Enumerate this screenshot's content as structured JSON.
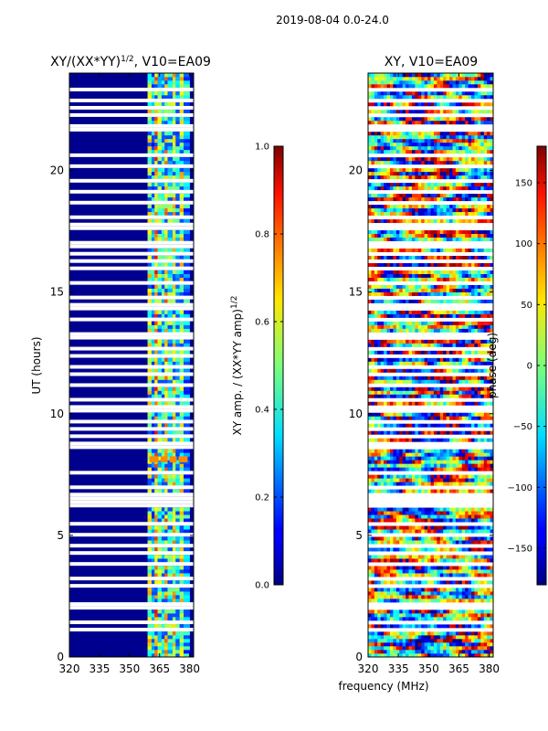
{
  "figure_title": "2019-08-04 0.0-24.0",
  "chart_data": [
    {
      "type": "heatmap",
      "title": "XY/(XX*YY)",
      "title_exponent": "1/2",
      "title_suffix": ", V10=EA09",
      "xlabel": "",
      "ylabel": "UT (hours)",
      "x_ticks": [
        "320",
        "335",
        "350",
        "365",
        "380"
      ],
      "x_tick_values": [
        320,
        335,
        350,
        365,
        380
      ],
      "xlim": [
        320,
        382
      ],
      "y_ticks": [
        "0",
        "5",
        "10",
        "15",
        "20"
      ],
      "y_tick_values": [
        0,
        5,
        10,
        15,
        20
      ],
      "ylim": [
        0,
        24
      ],
      "colormap": "jet",
      "active_band_mhz": [
        358,
        380
      ],
      "colorbar": {
        "label": "XY amp. / (XX*YY amp)",
        "label_exponent": "1/2",
        "range": [
          0.0,
          1.0
        ],
        "ticks": [
          "0.0",
          "0.2",
          "0.4",
          "0.6",
          "0.8",
          "1.0"
        ],
        "tick_values": [
          0.0,
          0.2,
          0.4,
          0.6,
          0.8,
          1.0
        ]
      }
    },
    {
      "type": "heatmap",
      "title": "XY, V10=EA09",
      "xlabel": "frequency (MHz)",
      "ylabel": "",
      "x_ticks": [
        "320",
        "335",
        "350",
        "365",
        "380"
      ],
      "x_tick_values": [
        320,
        335,
        350,
        365,
        380
      ],
      "xlim": [
        320,
        382
      ],
      "y_ticks": [
        "0",
        "5",
        "10",
        "15",
        "20"
      ],
      "y_tick_values": [
        0,
        5,
        10,
        15,
        20
      ],
      "ylim": [
        0,
        24
      ],
      "colormap": "jet",
      "colorbar": {
        "label": "phase (deg)",
        "range": [
          -180,
          180
        ],
        "ticks": [
          "−150",
          "−100",
          "−50",
          "0",
          "50",
          "100",
          "150"
        ],
        "tick_values": [
          -150,
          -100,
          -50,
          0,
          50,
          100,
          150
        ]
      }
    }
  ],
  "gap_hours": [
    1.1,
    1.4,
    2.0,
    2.15,
    2.9,
    3.2,
    3.8,
    4.3,
    4.6,
    5.0,
    5.5,
    6.3,
    6.6,
    7.0,
    7.6,
    8.6,
    8.8,
    9.0,
    9.4,
    9.7,
    10.2,
    10.6,
    11.2,
    11.6,
    11.9,
    12.3,
    12.7,
    13.1,
    13.3,
    13.8,
    14.3,
    14.5,
    14.8,
    15.4,
    15.9,
    16.3,
    16.6,
    16.8,
    17.0,
    17.6,
    17.8,
    18.1,
    18.7,
    19.1,
    19.5,
    20.1,
    20.6,
    21.6,
    21.8,
    22.3,
    22.5,
    22.8,
    23.3
  ]
}
